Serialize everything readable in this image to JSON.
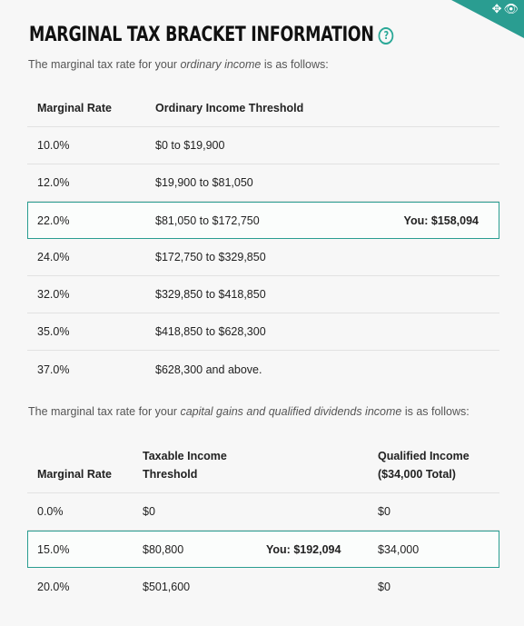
{
  "title": "MARGINAL TAX BRACKET INFORMATION",
  "ordinary": {
    "intro_pre": "The marginal tax rate for your ",
    "intro_em": "ordinary income",
    "intro_post": " is as follows:",
    "headers": {
      "rate": "Marginal Rate",
      "threshold": "Ordinary Income Threshold"
    },
    "rows": [
      {
        "rate": "10.0%",
        "threshold": "$0 to $19,900"
      },
      {
        "rate": "12.0%",
        "threshold": "$19,900 to $81,050"
      },
      {
        "rate": "22.0%",
        "threshold": "$81,050 to $172,750",
        "you": "You: $158,094"
      },
      {
        "rate": "24.0%",
        "threshold": "$172,750 to $329,850"
      },
      {
        "rate": "32.0%",
        "threshold": "$329,850 to $418,850"
      },
      {
        "rate": "35.0%",
        "threshold": "$418,850 to $628,300"
      },
      {
        "rate": "37.0%",
        "threshold": "$628,300 and above."
      }
    ]
  },
  "capital": {
    "intro_pre": "The marginal tax rate for your ",
    "intro_em": "capital gains and qualified dividends income",
    "intro_post": " is as follows:",
    "headers": {
      "rate": "Marginal Rate",
      "threshold_line1": "Taxable Income",
      "threshold_line2": "Threshold",
      "qualified_line1": "Qualified Income",
      "qualified_line2": "($34,000 Total)"
    },
    "rows": [
      {
        "rate": "0.0%",
        "threshold": "$0",
        "qualified": "$0"
      },
      {
        "rate": "15.0%",
        "threshold": "$80,800",
        "you": "You: $192,094",
        "qualified": "$34,000"
      },
      {
        "rate": "20.0%",
        "threshold": "$501,600",
        "qualified": "$0"
      }
    ]
  },
  "colors": {
    "accent": "#2a9d91",
    "help": "#2aa897"
  }
}
